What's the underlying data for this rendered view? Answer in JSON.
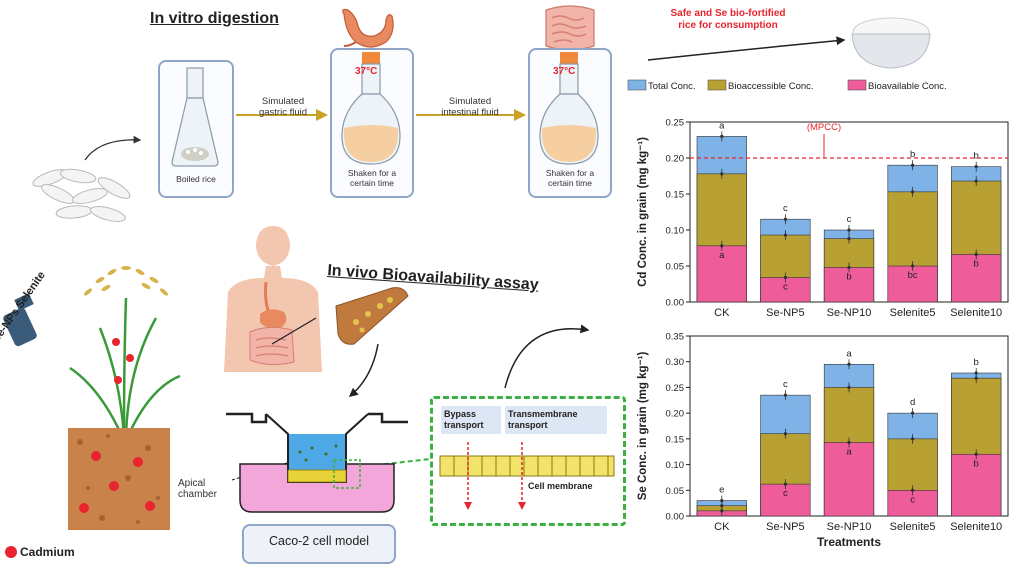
{
  "invitro": {
    "title": "In vitro digestion",
    "boiled_rice": "Boiled rice",
    "gastric_label": "Simulated\ngastric fluid",
    "intestinal_label": "Simulated\nintestinal fluid",
    "temp1": "37°C",
    "temp2": "37°C",
    "shaken1": "Shaken for a\ncertain time",
    "shaken2": "Shaken for a\ncertain time"
  },
  "invivo": {
    "title": "In vivo Bioavailability assay",
    "apical": "Apical\nchamber",
    "caco": "Caco-2 cell model",
    "bypass": "Bypass\ntransport",
    "transmembrane": "Transmembrane\ntransport",
    "membrane": "Cell membrane"
  },
  "plant": {
    "spray_label": "Se-NPs Selenite",
    "cadmium_label": "Cadmium"
  },
  "safe_label": "Safe and Se bio-fortified\nrice for consumption",
  "colors": {
    "total": "#7fb3e8",
    "bioaccessible": "#b8a032",
    "bioavailable": "#ee5d9a",
    "mpcc": "#e8242f",
    "frame": "#8fa6c8",
    "green": "#3cb043"
  },
  "chart_data": [
    {
      "type": "bar",
      "ylabel": "Cd Conc. in grain (mg kg⁻¹)",
      "categories": [
        "CK",
        "Se-NP5",
        "Se-NP10",
        "Selenite5",
        "Selenite10"
      ],
      "series": [
        {
          "name": "Total Conc.",
          "values": [
            0.23,
            0.115,
            0.1,
            0.19,
            0.188
          ]
        },
        {
          "name": "Bioaccessible Conc.",
          "values": [
            0.178,
            0.093,
            0.088,
            0.153,
            0.168
          ]
        },
        {
          "name": "Bioavailable Conc.",
          "values": [
            0.078,
            0.034,
            0.048,
            0.05,
            0.066
          ]
        }
      ],
      "letters_top": [
        "a",
        "c",
        "c",
        "b",
        "b"
      ],
      "letters_bottom": [
        "a",
        "c",
        "b",
        "bc",
        "b"
      ],
      "ylim": [
        0,
        0.25
      ],
      "yticks": [
        "0.00",
        "0.05",
        "0.10",
        "0.15",
        "0.20",
        "0.25"
      ],
      "reference_line": {
        "value": 0.2,
        "label": "(MPCC)"
      }
    },
    {
      "type": "bar",
      "ylabel": "Se Conc. in grain (mg kg⁻¹)",
      "xlabel": "Treatments",
      "categories": [
        "CK",
        "Se-NP5",
        "Se-NP10",
        "Selenite5",
        "Selenite10"
      ],
      "series": [
        {
          "name": "Total Conc.",
          "values": [
            0.03,
            0.235,
            0.295,
            0.2,
            0.278
          ]
        },
        {
          "name": "Bioaccessible Conc.",
          "values": [
            0.02,
            0.16,
            0.25,
            0.15,
            0.268
          ]
        },
        {
          "name": "Bioavailable Conc.",
          "values": [
            0.01,
            0.062,
            0.143,
            0.05,
            0.12
          ]
        }
      ],
      "letters_top": [
        "e",
        "c",
        "a",
        "d",
        "b"
      ],
      "letters_bottom": [
        "",
        "c",
        "a",
        "c",
        "b"
      ],
      "ylim": [
        0,
        0.35
      ],
      "yticks": [
        "0.00",
        "0.05",
        "0.10",
        "0.15",
        "0.20",
        "0.25",
        "0.30",
        "0.35"
      ]
    }
  ]
}
